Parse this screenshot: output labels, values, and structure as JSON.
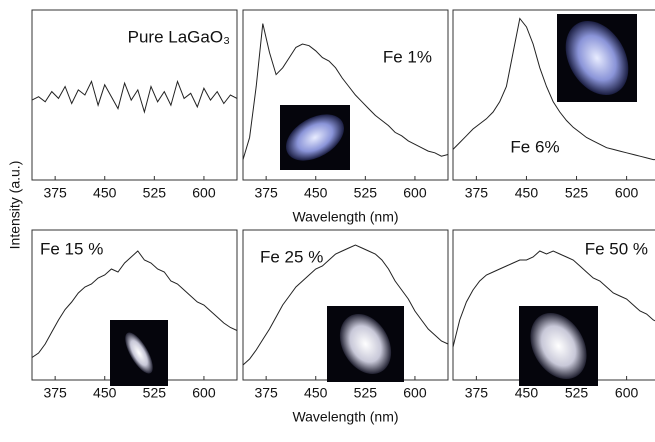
{
  "chart_data": [
    {
      "type": "line",
      "title": "Pure LaGaO₃",
      "ylabel": "Intensity (a.u.)",
      "x": [
        340,
        350,
        360,
        370,
        380,
        390,
        400,
        410,
        420,
        430,
        440,
        450,
        460,
        470,
        480,
        490,
        500,
        510,
        520,
        530,
        540,
        550,
        560,
        570,
        580,
        590,
        600,
        610,
        620,
        630,
        640,
        650
      ],
      "values": [
        0.47,
        0.49,
        0.46,
        0.52,
        0.48,
        0.55,
        0.45,
        0.53,
        0.5,
        0.58,
        0.44,
        0.56,
        0.49,
        0.42,
        0.57,
        0.47,
        0.53,
        0.4,
        0.55,
        0.46,
        0.52,
        0.44,
        0.58,
        0.48,
        0.51,
        0.43,
        0.54,
        0.47,
        0.52,
        0.45,
        0.5,
        0.48
      ],
      "color": "#222222",
      "xlim": [
        340,
        650
      ],
      "xticks": [
        375,
        450,
        525,
        600
      ],
      "ylim": [
        0,
        1
      ]
    },
    {
      "type": "line",
      "title": "Fe 1%",
      "xlabel": "Wavelength (nm)",
      "x": [
        340,
        350,
        360,
        370,
        380,
        390,
        400,
        410,
        420,
        430,
        440,
        450,
        460,
        470,
        480,
        490,
        500,
        510,
        520,
        530,
        540,
        550,
        560,
        570,
        580,
        590,
        600,
        610,
        620,
        630,
        640,
        650
      ],
      "values": [
        0.12,
        0.25,
        0.55,
        0.92,
        0.75,
        0.62,
        0.66,
        0.72,
        0.78,
        0.8,
        0.79,
        0.76,
        0.72,
        0.7,
        0.66,
        0.6,
        0.55,
        0.5,
        0.46,
        0.42,
        0.38,
        0.35,
        0.32,
        0.28,
        0.26,
        0.23,
        0.21,
        0.19,
        0.17,
        0.16,
        0.14,
        0.15
      ],
      "color": "#222222",
      "xlim": [
        340,
        650
      ],
      "xticks": [
        375,
        450,
        525,
        600
      ],
      "ylim": [
        0,
        1
      ]
    },
    {
      "type": "line",
      "title": "Fe 6%",
      "x": [
        340,
        350,
        360,
        370,
        380,
        390,
        400,
        410,
        420,
        430,
        440,
        450,
        460,
        470,
        480,
        490,
        500,
        510,
        520,
        530,
        540,
        550,
        560,
        570,
        580,
        590,
        600,
        610,
        620,
        630,
        640,
        650
      ],
      "values": [
        0.18,
        0.22,
        0.26,
        0.3,
        0.33,
        0.36,
        0.4,
        0.46,
        0.55,
        0.75,
        0.95,
        0.9,
        0.8,
        0.66,
        0.55,
        0.46,
        0.4,
        0.35,
        0.31,
        0.28,
        0.25,
        0.23,
        0.21,
        0.19,
        0.18,
        0.17,
        0.16,
        0.15,
        0.14,
        0.13,
        0.12,
        0.12
      ],
      "color": "#222222",
      "xlim": [
        340,
        650
      ],
      "xticks": [
        375,
        450,
        525,
        600
      ],
      "ylim": [
        0,
        1
      ]
    },
    {
      "type": "line",
      "title": "Fe 15 %",
      "x": [
        340,
        350,
        360,
        370,
        380,
        390,
        400,
        410,
        420,
        430,
        440,
        450,
        460,
        470,
        480,
        490,
        500,
        510,
        520,
        530,
        540,
        550,
        560,
        570,
        580,
        590,
        600,
        610,
        620,
        630,
        640,
        650
      ],
      "values": [
        0.15,
        0.18,
        0.24,
        0.32,
        0.4,
        0.47,
        0.52,
        0.58,
        0.62,
        0.64,
        0.68,
        0.7,
        0.74,
        0.72,
        0.78,
        0.82,
        0.86,
        0.8,
        0.78,
        0.74,
        0.72,
        0.66,
        0.64,
        0.6,
        0.56,
        0.52,
        0.5,
        0.46,
        0.42,
        0.38,
        0.35,
        0.33
      ],
      "color": "#222222",
      "xlim": [
        340,
        650
      ],
      "xticks": [
        375,
        450,
        525,
        600
      ],
      "ylim": [
        0,
        1
      ]
    },
    {
      "type": "line",
      "title": "Fe 25 %",
      "xlabel": "Wavelength (nm)",
      "x": [
        340,
        350,
        360,
        370,
        380,
        390,
        400,
        410,
        420,
        430,
        440,
        450,
        460,
        470,
        480,
        490,
        500,
        510,
        520,
        530,
        540,
        550,
        560,
        570,
        580,
        590,
        600,
        610,
        620,
        630,
        640,
        650
      ],
      "values": [
        0.1,
        0.14,
        0.2,
        0.27,
        0.34,
        0.42,
        0.5,
        0.56,
        0.62,
        0.66,
        0.7,
        0.74,
        0.76,
        0.8,
        0.84,
        0.86,
        0.88,
        0.9,
        0.88,
        0.86,
        0.84,
        0.8,
        0.74,
        0.66,
        0.6,
        0.54,
        0.46,
        0.4,
        0.34,
        0.3,
        0.26,
        0.24
      ],
      "color": "#222222",
      "xlim": [
        340,
        650
      ],
      "xticks": [
        375,
        450,
        525,
        600
      ],
      "ylim": [
        0,
        1
      ]
    },
    {
      "type": "line",
      "title": "Fe 50 %",
      "x": [
        340,
        350,
        360,
        370,
        380,
        390,
        400,
        410,
        420,
        430,
        440,
        450,
        460,
        470,
        480,
        490,
        500,
        510,
        520,
        530,
        540,
        550,
        560,
        570,
        580,
        590,
        600,
        610,
        620,
        630,
        640,
        650
      ],
      "values": [
        0.22,
        0.4,
        0.52,
        0.6,
        0.66,
        0.7,
        0.72,
        0.74,
        0.76,
        0.78,
        0.8,
        0.8,
        0.82,
        0.86,
        0.84,
        0.86,
        0.84,
        0.82,
        0.8,
        0.76,
        0.72,
        0.68,
        0.66,
        0.62,
        0.58,
        0.56,
        0.54,
        0.5,
        0.46,
        0.44,
        0.4,
        0.38
      ],
      "color": "#222222",
      "xlim": [
        340,
        650
      ],
      "xticks": [
        375,
        450,
        525,
        600
      ],
      "ylim": [
        0,
        1
      ]
    }
  ]
}
